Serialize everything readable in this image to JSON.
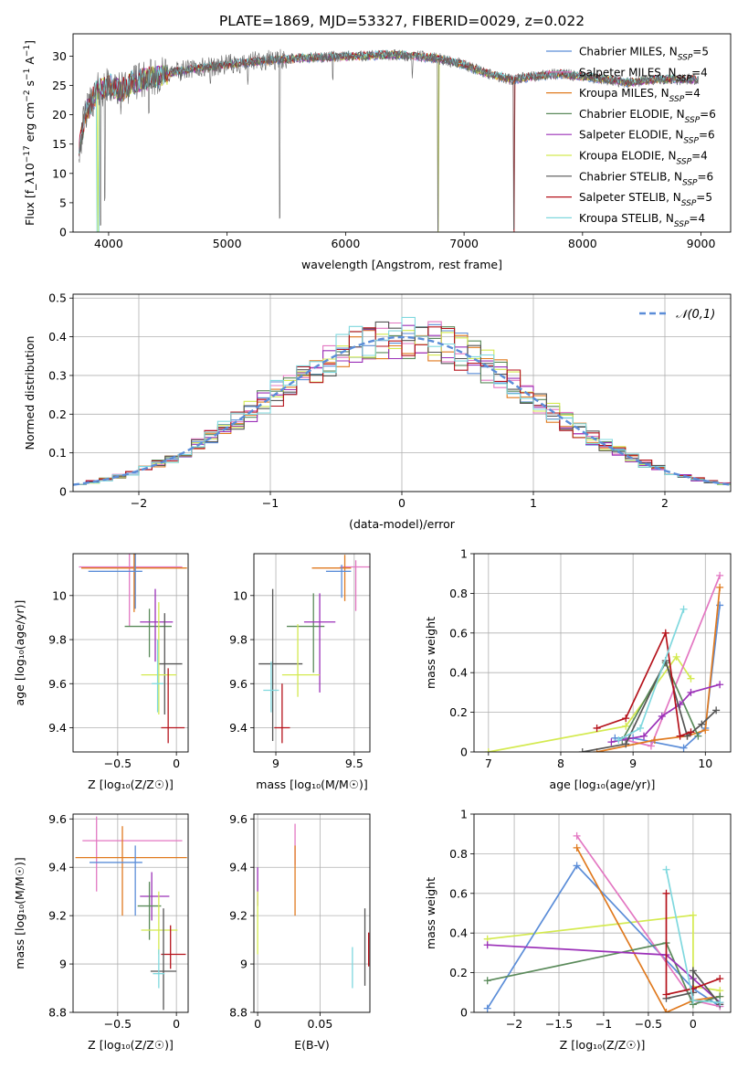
{
  "figure_title": "PLATE=1869, MJD=53327, FIBERID=0029, z=0.022",
  "colors": {
    "Chabrier MILES": "#5b8dd8",
    "Salpeter MILES": "#e377c2",
    "Kroupa MILES": "#e07a1f",
    "Chabrier ELODIE": "#5a8a5a",
    "Salpeter ELODIE": "#9b30b8",
    "Kroupa ELODIE": "#d4ea50",
    "Chabrier STELIB": "#555555",
    "Salpeter STELIB": "#b5121b",
    "Kroupa STELIB": "#7fd8de"
  },
  "chart_data": [
    {
      "id": "spectrum",
      "type": "line",
      "xlabel": "wavelength [Angstrom, rest frame]",
      "ylabel": "Flux [f_λ10^-17 erg cm^-2 s^-1 A^-1]",
      "xlim": [
        3700,
        9250
      ],
      "ylim": [
        0,
        33.8
      ],
      "xticks": [
        4000,
        5000,
        6000,
        7000,
        8000,
        9000
      ],
      "yticks": [
        0,
        5,
        10,
        15,
        20,
        25,
        30
      ],
      "grid": false,
      "legend_position": "top-right",
      "legend": [
        {
          "name": "Chabrier MILES, N_SSP=5",
          "model": "Chabrier MILES"
        },
        {
          "name": "Salpeter MILES, N_SSP=4",
          "model": "Salpeter MILES"
        },
        {
          "name": "Kroupa MILES, N_SSP=4",
          "model": "Kroupa MILES"
        },
        {
          "name": "Chabrier ELODIE, N_SSP=6",
          "model": "Chabrier ELODIE"
        },
        {
          "name": "Salpeter ELODIE, N_SSP=6",
          "model": "Salpeter ELODIE"
        },
        {
          "name": "Kroupa ELODIE, N_SSP=4",
          "model": "Kroupa ELODIE"
        },
        {
          "name": "Chabrier STELIB, N_SSP=6",
          "model": "Chabrier STELIB"
        },
        {
          "name": "Salpeter STELIB, N_SSP=5",
          "model": "Salpeter STELIB"
        },
        {
          "name": "Kroupa STELIB, N_SSP=4",
          "model": "Kroupa STELIB"
        }
      ],
      "continuum": [
        [
          3750,
          14
        ],
        [
          3800,
          20
        ],
        [
          3900,
          24
        ],
        [
          4000,
          25
        ],
        [
          4100,
          24
        ],
        [
          4200,
          25.5
        ],
        [
          4400,
          26.5
        ],
        [
          4600,
          27.5
        ],
        [
          4800,
          28
        ],
        [
          5000,
          28.5
        ],
        [
          5200,
          29
        ],
        [
          5500,
          29.5
        ],
        [
          5800,
          29.8
        ],
        [
          6100,
          30
        ],
        [
          6400,
          30.2
        ],
        [
          6600,
          30
        ],
        [
          6800,
          29.5
        ],
        [
          7000,
          28.5
        ],
        [
          7200,
          27
        ],
        [
          7400,
          26
        ],
        [
          7600,
          26.5
        ],
        [
          7800,
          27
        ],
        [
          8000,
          26.5
        ],
        [
          8200,
          26
        ],
        [
          8400,
          25.5
        ],
        [
          8600,
          26
        ],
        [
          8800,
          26
        ],
        [
          8980,
          26
        ]
      ],
      "dips": [
        [
          3933,
          0
        ],
        [
          3968,
          5
        ],
        [
          4102,
          20
        ],
        [
          4340,
          19
        ],
        [
          4861,
          25
        ],
        [
          5175,
          24.5
        ],
        [
          5445,
          2
        ],
        [
          5893,
          25
        ],
        [
          6563,
          26
        ],
        [
          6780,
          0
        ],
        [
          7420,
          0
        ]
      ]
    },
    {
      "id": "residuals",
      "type": "histogram",
      "xlabel": "(data-model)/error",
      "ylabel": "Normed distribution",
      "xlim": [
        -2.5,
        2.5
      ],
      "ylim": [
        0,
        0.51
      ],
      "xticks": [
        -2,
        -1,
        0,
        1,
        2
      ],
      "yticks": [
        0.0,
        0.1,
        0.2,
        0.3,
        0.4,
        0.5
      ],
      "grid": true,
      "legend_position": "top-right",
      "reference_curve": {
        "name": "𝒩(0,1)",
        "mean": 0,
        "sigma": 1,
        "color": "#5b8dd8"
      },
      "bin_width": 0.1,
      "amplitude_seeds": [
        3,
        7,
        11,
        13,
        17,
        19,
        23,
        29,
        31
      ]
    },
    {
      "id": "age_vs_Z",
      "type": "errorbar",
      "xlabel": "Z [log10(Z/Z☉)]",
      "ylabel": "age [log10(age/yr)]",
      "xlim": [
        -0.88,
        0.1
      ],
      "ylim": [
        9.29,
        10.19
      ],
      "xticks": [
        -0.5,
        0.0
      ],
      "yticks": [
        9.4,
        9.6,
        9.8,
        10.0
      ],
      "grid": true,
      "points": [
        {
          "model": "Salpeter MILES",
          "x": -0.4,
          "y": 10.13,
          "xerr": [
            0.43,
            0.45
          ],
          "yerr": [
            0.27,
            0.06
          ]
        },
        {
          "model": "Kroupa MILES",
          "x": -0.36,
          "y": 10.125,
          "xerr": [
            0.45,
            0.45
          ],
          "yerr": [
            0.2,
            0.07
          ]
        },
        {
          "model": "Chabrier MILES",
          "x": -0.35,
          "y": 10.11,
          "xerr": [
            0.4,
            0.06
          ],
          "yerr": [
            0.17,
            0.1
          ]
        },
        {
          "model": "Chabrier ELODIE",
          "x": -0.23,
          "y": 9.86,
          "xerr": [
            0.21,
            0.19
          ],
          "yerr": [
            0.14,
            0.08
          ]
        },
        {
          "model": "Salpeter ELODIE",
          "x": -0.18,
          "y": 9.88,
          "xerr": [
            0.13,
            0.15
          ],
          "yerr": [
            0.18,
            0.15
          ]
        },
        {
          "model": "Chabrier STELIB",
          "x": -0.1,
          "y": 9.69,
          "xerr": [
            0.05,
            0.15
          ],
          "yerr": [
            0.23,
            0.23
          ]
        },
        {
          "model": "Kroupa ELODIE",
          "x": -0.15,
          "y": 9.64,
          "xerr": [
            0.15,
            0.15
          ],
          "yerr": [
            0.18,
            0.33
          ]
        },
        {
          "model": "Kroupa STELIB",
          "x": -0.16,
          "y": 9.6,
          "xerr": [
            0.05,
            0.05
          ],
          "yerr": [
            0.13,
            0.2
          ]
        },
        {
          "model": "Salpeter STELIB",
          "x": -0.07,
          "y": 9.4,
          "xerr": [
            0.06,
            0.14
          ],
          "yerr": [
            0.07,
            0.27
          ]
        }
      ]
    },
    {
      "id": "age_vs_mass",
      "type": "errorbar",
      "xlabel": "mass [log10(M/M☉)]",
      "ylabel": "",
      "xlim": [
        8.86,
        9.6
      ],
      "ylim": [
        9.29,
        10.19
      ],
      "xticks": [
        9.0,
        9.5
      ],
      "yticks": [
        9.4,
        9.6,
        9.8,
        10.0
      ],
      "grid": true,
      "points": [
        {
          "model": "Salpeter MILES",
          "x": 9.51,
          "y": 10.13,
          "xerr": [
            0.1,
            0.1
          ],
          "yerr": [
            0.2,
            0.03
          ]
        },
        {
          "model": "Kroupa MILES",
          "x": 9.44,
          "y": 10.125,
          "xerr": [
            0.21,
            0.04
          ],
          "yerr": [
            0.15,
            0.06
          ]
        },
        {
          "model": "Chabrier MILES",
          "x": 9.42,
          "y": 10.11,
          "xerr": [
            0.1,
            0.06
          ],
          "yerr": [
            0.12,
            0.03
          ]
        },
        {
          "model": "Chabrier ELODIE",
          "x": 9.24,
          "y": 9.86,
          "xerr": [
            0.17,
            0.07
          ],
          "yerr": [
            0.21,
            0.15
          ]
        },
        {
          "model": "Salpeter ELODIE",
          "x": 9.28,
          "y": 9.88,
          "xerr": [
            0.1,
            0.1
          ],
          "yerr": [
            0.32,
            0.13
          ]
        },
        {
          "model": "Chabrier STELIB",
          "x": 8.98,
          "y": 9.69,
          "xerr": [
            0.09,
            0.19
          ],
          "yerr": [
            0.35,
            0.34
          ]
        },
        {
          "model": "Kroupa ELODIE",
          "x": 9.14,
          "y": 9.64,
          "xerr": [
            0.1,
            0.14
          ],
          "yerr": [
            0.1,
            0.23
          ]
        },
        {
          "model": "Kroupa STELIB",
          "x": 8.97,
          "y": 9.57,
          "xerr": [
            0.05,
            0.05
          ],
          "yerr": [
            0.1,
            0.13
          ]
        },
        {
          "model": "Salpeter STELIB",
          "x": 9.04,
          "y": 9.4,
          "xerr": [
            0.05,
            0.05
          ],
          "yerr": [
            0.07,
            0.2
          ]
        }
      ]
    },
    {
      "id": "mass_vs_Z",
      "type": "errorbar",
      "xlabel": "Z [log10(Z/Z☉)]",
      "ylabel": "mass [log10(M/M☉)]",
      "xlim": [
        -0.88,
        0.1
      ],
      "ylim": [
        8.8,
        9.62
      ],
      "xticks": [
        -0.5,
        0.0
      ],
      "yticks": [
        8.8,
        9.0,
        9.2,
        9.4,
        9.6
      ],
      "grid": true,
      "points": [
        {
          "model": "Salpeter MILES",
          "x": -0.68,
          "y": 9.51,
          "xerr": [
            0.12,
            0.73
          ],
          "yerr": [
            0.21,
            0.1
          ]
        },
        {
          "model": "Kroupa MILES",
          "x": -0.46,
          "y": 9.44,
          "xerr": [
            0.4,
            0.55
          ],
          "yerr": [
            0.24,
            0.13
          ]
        },
        {
          "model": "Chabrier MILES",
          "x": -0.35,
          "y": 9.42,
          "xerr": [
            0.39,
            0.06
          ],
          "yerr": [
            0.22,
            0.07
          ]
        },
        {
          "model": "Salpeter ELODIE",
          "x": -0.21,
          "y": 9.28,
          "xerr": [
            0.1,
            0.15
          ],
          "yerr": [
            0.1,
            0.1
          ]
        },
        {
          "model": "Chabrier ELODIE",
          "x": -0.23,
          "y": 9.24,
          "xerr": [
            0.1,
            0.1
          ],
          "yerr": [
            0.14,
            0.1
          ]
        },
        {
          "model": "Kroupa ELODIE",
          "x": -0.15,
          "y": 9.14,
          "xerr": [
            0.15,
            0.16
          ],
          "yerr": [
            0.1,
            0.16
          ]
        },
        {
          "model": "Salpeter STELIB",
          "x": -0.05,
          "y": 9.04,
          "xerr": [
            0.08,
            0.13
          ],
          "yerr": [
            0.06,
            0.12
          ]
        },
        {
          "model": "Chabrier STELIB",
          "x": -0.11,
          "y": 8.97,
          "xerr": [
            0.11,
            0.11
          ],
          "yerr": [
            0.16,
            0.26
          ]
        },
        {
          "model": "Kroupa STELIB",
          "x": -0.15,
          "y": 8.96,
          "xerr": [
            0.05,
            0.05
          ],
          "yerr": [
            0.06,
            0.1
          ]
        }
      ]
    },
    {
      "id": "mass_vs_EBV",
      "type": "errorbar",
      "xlabel": "E(B-V)",
      "ylabel": "",
      "xlim": [
        -0.003,
        0.09
      ],
      "ylim": [
        8.8,
        9.62
      ],
      "xticks": [
        0.0,
        0.05
      ],
      "yticks": [
        8.8,
        9.0,
        9.2,
        9.4,
        9.6
      ],
      "grid": true,
      "points": [
        {
          "model": "Salpeter MILES",
          "x": 0.03,
          "y": 9.51,
          "xerr": [
            0,
            0
          ],
          "yerr": [
            0.1,
            0.07
          ]
        },
        {
          "model": "Kroupa MILES",
          "x": 0.03,
          "y": 9.44,
          "xerr": [
            0,
            0
          ],
          "yerr": [
            0.24,
            0.05
          ]
        },
        {
          "model": "Salpeter ELODIE",
          "x": 0.0,
          "y": 9.3,
          "xerr": [
            0,
            0
          ],
          "yerr": [
            0.06,
            0.1
          ]
        },
        {
          "model": "Kroupa ELODIE",
          "x": 0.0,
          "y": 9.14,
          "xerr": [
            0,
            0
          ],
          "yerr": [
            0.1,
            0.16
          ]
        },
        {
          "model": "Chabrier STELIB",
          "x": 0.086,
          "y": 9.05,
          "xerr": [
            0,
            0
          ],
          "yerr": [
            0.14,
            0.18
          ]
        },
        {
          "model": "Salpeter STELIB",
          "x": 0.089,
          "y": 9.05,
          "xerr": [
            0,
            0
          ],
          "yerr": [
            0.06,
            0.08
          ]
        },
        {
          "model": "Kroupa STELIB",
          "x": 0.076,
          "y": 8.98,
          "xerr": [
            0,
            0
          ],
          "yerr": [
            0.08,
            0.09
          ]
        }
      ]
    },
    {
      "id": "weight_vs_age",
      "type": "line",
      "xlabel": "age [log10(age/yr)]",
      "ylabel": "mass weight",
      "xlim": [
        6.8,
        10.35
      ],
      "ylim": [
        0,
        1.0
      ],
      "xticks": [
        7,
        8,
        9,
        10
      ],
      "yticks": [
        0.0,
        0.2,
        0.4,
        0.6,
        0.8,
        1.0
      ],
      "grid": true,
      "series": [
        {
          "model": "Kroupa ELODIE",
          "x": [
            7.0,
            8.9,
            9.6,
            9.8
          ],
          "y": [
            0.0,
            0.13,
            0.48,
            0.37
          ]
        },
        {
          "model": "Chabrier MILES",
          "x": [
            8.75,
            9.0,
            9.7,
            10.0,
            10.2
          ],
          "y": [
            0.07,
            0.07,
            0.02,
            0.12,
            0.74
          ]
        },
        {
          "model": "Salpeter MILES",
          "x": [
            8.9,
            9.25,
            10.2
          ],
          "y": [
            0.06,
            0.03,
            0.89
          ]
        },
        {
          "model": "Kroupa MILES",
          "x": [
            8.5,
            9.3,
            9.75,
            10.0,
            10.2
          ],
          "y": [
            0.0,
            0.06,
            0.08,
            0.11,
            0.83
          ]
        },
        {
          "model": "Chabrier ELODIE",
          "x": [
            8.85,
            9.45,
            9.9
          ],
          "y": [
            0.06,
            0.45,
            0.08
          ]
        },
        {
          "model": "Salpeter ELODIE",
          "x": [
            8.7,
            9.15,
            9.4,
            9.65,
            9.8,
            10.2
          ],
          "y": [
            0.05,
            0.08,
            0.18,
            0.24,
            0.3,
            0.34
          ]
        },
        {
          "model": "Chabrier STELIB",
          "x": [
            8.3,
            8.9,
            9.45,
            9.75,
            9.95,
            10.15
          ],
          "y": [
            0.0,
            0.04,
            0.46,
            0.08,
            0.14,
            0.21
          ]
        },
        {
          "model": "Salpeter STELIB",
          "x": [
            8.5,
            8.9,
            9.45,
            9.65,
            9.8
          ],
          "y": [
            0.12,
            0.17,
            0.6,
            0.08,
            0.1
          ]
        },
        {
          "model": "Kroupa STELIB",
          "x": [
            8.8,
            9.1,
            9.7
          ],
          "y": [
            0.06,
            0.12,
            0.72
          ]
        }
      ]
    },
    {
      "id": "weight_vs_Z",
      "type": "line",
      "xlabel": "Z [log10(Z/Z☉)]",
      "ylabel": "mass weight",
      "xlim": [
        -2.45,
        0.42
      ],
      "ylim": [
        0,
        1.0
      ],
      "xticks": [
        -2.0,
        -1.5,
        -1.0,
        -0.5,
        0.0
      ],
      "yticks": [
        0.0,
        0.2,
        0.4,
        0.6,
        0.8,
        1.0
      ],
      "grid": true,
      "series": [
        {
          "model": "Kroupa ELODIE",
          "x": [
            -2.3,
            0.0,
            0.0,
            0.3
          ],
          "y": [
            0.37,
            0.49,
            0.13,
            0.11
          ]
        },
        {
          "model": "Chabrier MILES",
          "x": [
            -2.3,
            -1.3,
            0.0,
            0.3
          ],
          "y": [
            0.02,
            0.74,
            0.12,
            0.03
          ]
        },
        {
          "model": "Salpeter MILES",
          "x": [
            -1.3,
            0.0,
            0.3
          ],
          "y": [
            0.89,
            0.06,
            0.03
          ]
        },
        {
          "model": "Kroupa MILES",
          "x": [
            -1.3,
            -0.3,
            0.0,
            0.3
          ],
          "y": [
            0.83,
            0.0,
            0.06,
            0.08
          ]
        },
        {
          "model": "Chabrier ELODIE",
          "x": [
            -2.3,
            -0.3,
            0.0,
            0.3
          ],
          "y": [
            0.16,
            0.35,
            0.04,
            0.08
          ]
        },
        {
          "model": "Salpeter ELODIE",
          "x": [
            -2.3,
            -0.3,
            0.0,
            0.3
          ],
          "y": [
            0.34,
            0.29,
            0.17,
            0.05
          ]
        },
        {
          "model": "Chabrier STELIB",
          "x": [
            -0.3,
            0.0,
            0.0,
            0.3
          ],
          "y": [
            0.07,
            0.1,
            0.21,
            0.04
          ]
        },
        {
          "model": "Salpeter STELIB",
          "x": [
            -0.3,
            -0.3,
            0.0,
            0.3
          ],
          "y": [
            0.6,
            0.09,
            0.12,
            0.17
          ]
        },
        {
          "model": "Kroupa STELIB",
          "x": [
            -0.3,
            0.0,
            0.3
          ],
          "y": [
            0.72,
            0.06,
            0.05
          ]
        }
      ]
    }
  ]
}
